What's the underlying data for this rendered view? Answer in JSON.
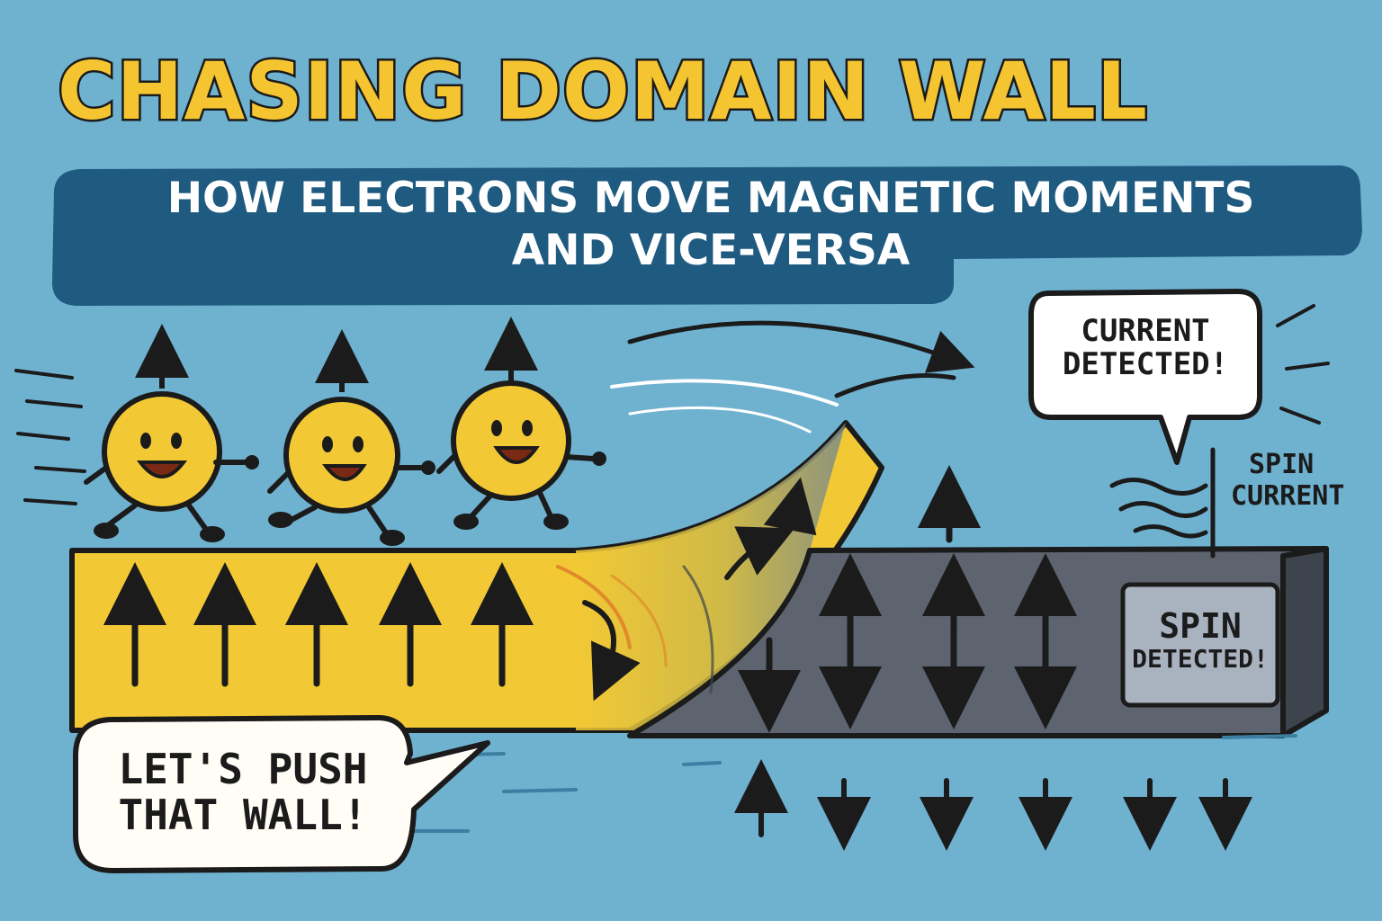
{
  "title": "CHASING DOMAIN WALL",
  "subtitle": {
    "line1": "HOW ELECTRONS MOVE MAGNETIC MOMENTS",
    "line2": "AND VICE-VERSA"
  },
  "bubbles": {
    "current": {
      "line1": "CURRENT",
      "line2": "DETECTED!"
    },
    "push": {
      "line1": "LET'S PUSH",
      "line2": "THAT WALL!"
    }
  },
  "labels": {
    "spin_current": {
      "line1": "SPIN",
      "line2": "CURRENT"
    },
    "spin_detected": {
      "line1": "SPIN",
      "line2": "DETECTED!"
    }
  },
  "colors": {
    "background": "#6fb2d0",
    "title_fill": "#f5c531",
    "banner": "#1f5a80",
    "yellow_domain": "#f2c935",
    "gray_domain": "#5d6470",
    "outline": "#1b1b1b"
  },
  "icons": [
    "electron-character",
    "up-arrow",
    "down-arrow",
    "double-arrow",
    "curved-arrow",
    "wavy-lines"
  ]
}
